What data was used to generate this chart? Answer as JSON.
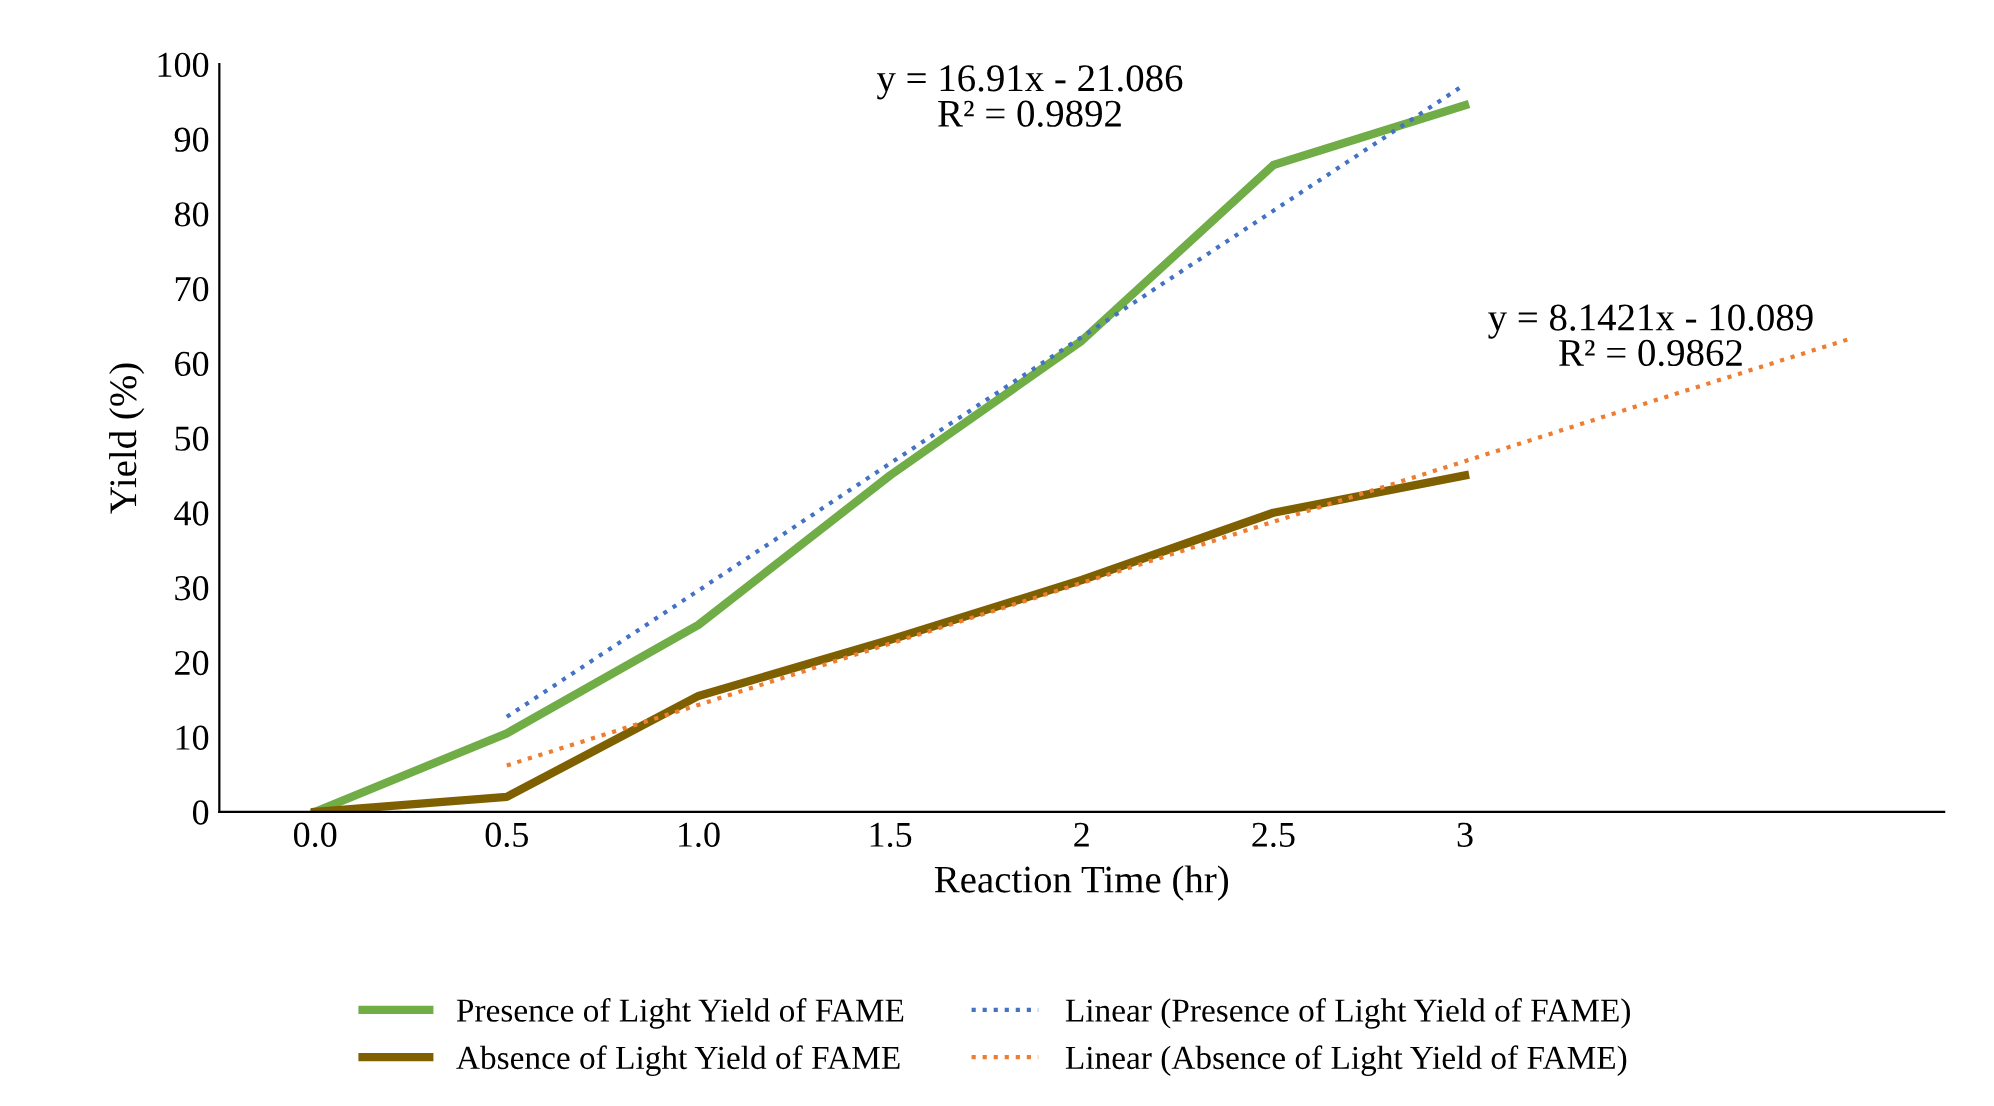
{
  "chart_data": {
    "type": "line",
    "xlabel": "Reaction Time (hr)",
    "ylabel": "Yield (%)",
    "categories": [
      "0.0",
      "0.5",
      "1.0",
      "1.5",
      "2",
      "2.5",
      "3",
      null,
      null
    ],
    "ylim": [
      0,
      100
    ],
    "yticks": [
      0,
      10,
      20,
      30,
      40,
      50,
      60,
      70,
      80,
      90,
      100
    ],
    "grid": false,
    "legend": "bottom",
    "series": [
      {
        "name": "Presence of Light Yield of FAME",
        "color": "#70ad47",
        "values": [
          0,
          10.5,
          25,
          45,
          63,
          86.5,
          94.5,
          null,
          null
        ]
      },
      {
        "name": "Absence of Light Yield of FAME",
        "color": "#7f6000",
        "values": [
          0,
          2,
          15.5,
          23,
          31,
          40,
          45,
          null,
          null
        ]
      },
      {
        "name": "Linear (Presence of Light Yield of FAME)",
        "color": "#4472c4",
        "line_style": "dotted",
        "values": [
          null,
          12.7,
          29.6,
          46.6,
          63.5,
          80.4,
          97.3,
          null,
          null
        ]
      },
      {
        "name": "Linear (Absence of Light Yield of FAME)",
        "color": "#ed7d31",
        "line_style": "dotted",
        "values": [
          null,
          6.2,
          14.3,
          22.5,
          30.6,
          38.8,
          46.9,
          55.1,
          63.2
        ]
      }
    ],
    "annotations": [
      "y = 16.91x - 21.086\nR² = 0.9892",
      "y = 8.1421x - 10.089\nR² = 0.9862"
    ]
  }
}
